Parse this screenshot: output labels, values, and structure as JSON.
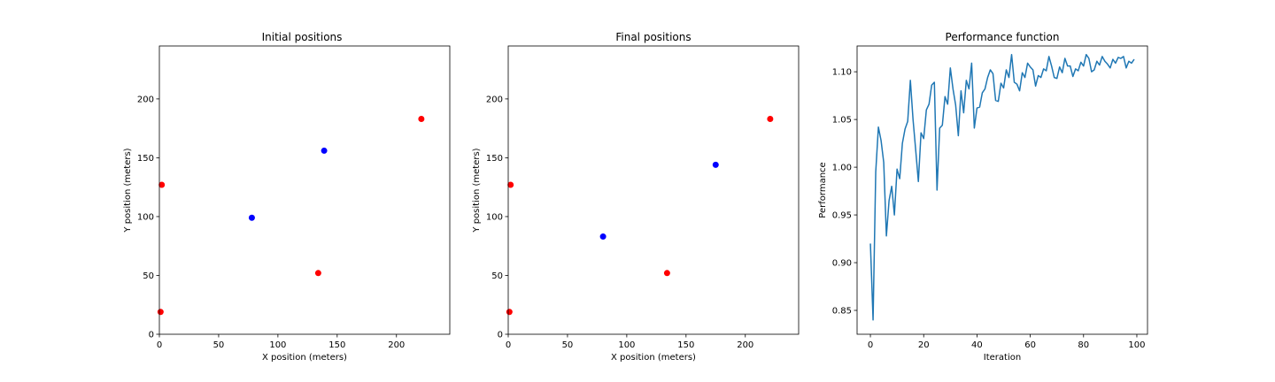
{
  "chart_data": [
    {
      "type": "scatter",
      "title": "Initial positions",
      "xlabel": "X position (meters)",
      "ylabel": "Y position (meters)",
      "xlim": [
        0,
        245
      ],
      "ylim": [
        0,
        245
      ],
      "xticks": [
        0,
        50,
        100,
        150,
        200
      ],
      "yticks": [
        0,
        50,
        100,
        150,
        200
      ],
      "grid": false,
      "series": [
        {
          "color": "#ff0000",
          "points": [
            [
              2,
              127
            ],
            [
              1,
              19
            ],
            [
              134,
              52
            ],
            [
              221,
              183
            ]
          ]
        },
        {
          "color": "#0000ff",
          "points": [
            [
              78,
              99
            ],
            [
              139,
              156
            ]
          ]
        }
      ]
    },
    {
      "type": "scatter",
      "title": "Final positions",
      "xlabel": "X position (meters)",
      "ylabel": "Y position (meters)",
      "xlim": [
        0,
        245
      ],
      "ylim": [
        0,
        245
      ],
      "xticks": [
        0,
        50,
        100,
        150,
        200
      ],
      "yticks": [
        0,
        50,
        100,
        150,
        200
      ],
      "grid": false,
      "series": [
        {
          "color": "#ff0000",
          "points": [
            [
              2,
              127
            ],
            [
              1,
              19
            ],
            [
              134,
              52
            ],
            [
              221,
              183
            ]
          ]
        },
        {
          "color": "#0000ff",
          "points": [
            [
              80,
              83
            ],
            [
              175,
              144
            ]
          ]
        }
      ]
    },
    {
      "type": "line",
      "title": "Performance function",
      "xlabel": "Iteration",
      "ylabel": "Performance",
      "xlim": [
        -5,
        104
      ],
      "ylim": [
        0.825,
        1.127
      ],
      "xticks": [
        0,
        20,
        40,
        60,
        80,
        100
      ],
      "yticks": [
        "0.85",
        "0.90",
        "0.95",
        "1.00",
        "1.05",
        "1.10"
      ],
      "grid": false,
      "series": [
        {
          "color": "#1f77b4",
          "x": [
            0,
            1,
            2,
            3,
            4,
            5,
            6,
            7,
            8,
            9,
            10,
            11,
            12,
            13,
            14,
            15,
            16,
            17,
            18,
            19,
            20,
            21,
            22,
            23,
            24,
            25,
            26,
            27,
            28,
            29,
            30,
            31,
            32,
            33,
            34,
            35,
            36,
            37,
            38,
            39,
            40,
            41,
            42,
            43,
            44,
            45,
            46,
            47,
            48,
            49,
            50,
            51,
            52,
            53,
            54,
            55,
            56,
            57,
            58,
            59,
            60,
            61,
            62,
            63,
            64,
            65,
            66,
            67,
            68,
            69,
            70,
            71,
            72,
            73,
            74,
            75,
            76,
            77,
            78,
            79,
            80,
            81,
            82,
            83,
            84,
            85,
            86,
            87,
            88,
            89,
            90,
            91,
            92,
            93,
            94,
            95,
            96,
            97,
            98,
            99
          ],
          "y": [
            0.92,
            0.84,
            0.995,
            1.042,
            1.028,
            1.005,
            0.928,
            0.965,
            0.98,
            0.95,
            0.998,
            0.988,
            1.025,
            1.04,
            1.048,
            1.091,
            1.05,
            1.018,
            0.985,
            1.036,
            1.03,
            1.06,
            1.066,
            1.086,
            1.089,
            0.976,
            1.041,
            1.044,
            1.074,
            1.066,
            1.104,
            1.082,
            1.065,
            1.033,
            1.08,
            1.057,
            1.091,
            1.082,
            1.109,
            1.041,
            1.062,
            1.063,
            1.078,
            1.082,
            1.094,
            1.102,
            1.098,
            1.07,
            1.069,
            1.088,
            1.083,
            1.102,
            1.094,
            1.118,
            1.089,
            1.087,
            1.08,
            1.099,
            1.094,
            1.109,
            1.105,
            1.102,
            1.085,
            1.096,
            1.094,
            1.103,
            1.101,
            1.116,
            1.106,
            1.094,
            1.093,
            1.105,
            1.099,
            1.114,
            1.106,
            1.106,
            1.095,
            1.103,
            1.101,
            1.11,
            1.106,
            1.118,
            1.114,
            1.1,
            1.102,
            1.111,
            1.107,
            1.116,
            1.111,
            1.108,
            1.104,
            1.113,
            1.109,
            1.115,
            1.114,
            1.116,
            1.104,
            1.111,
            1.109,
            1.113
          ]
        }
      ]
    }
  ]
}
